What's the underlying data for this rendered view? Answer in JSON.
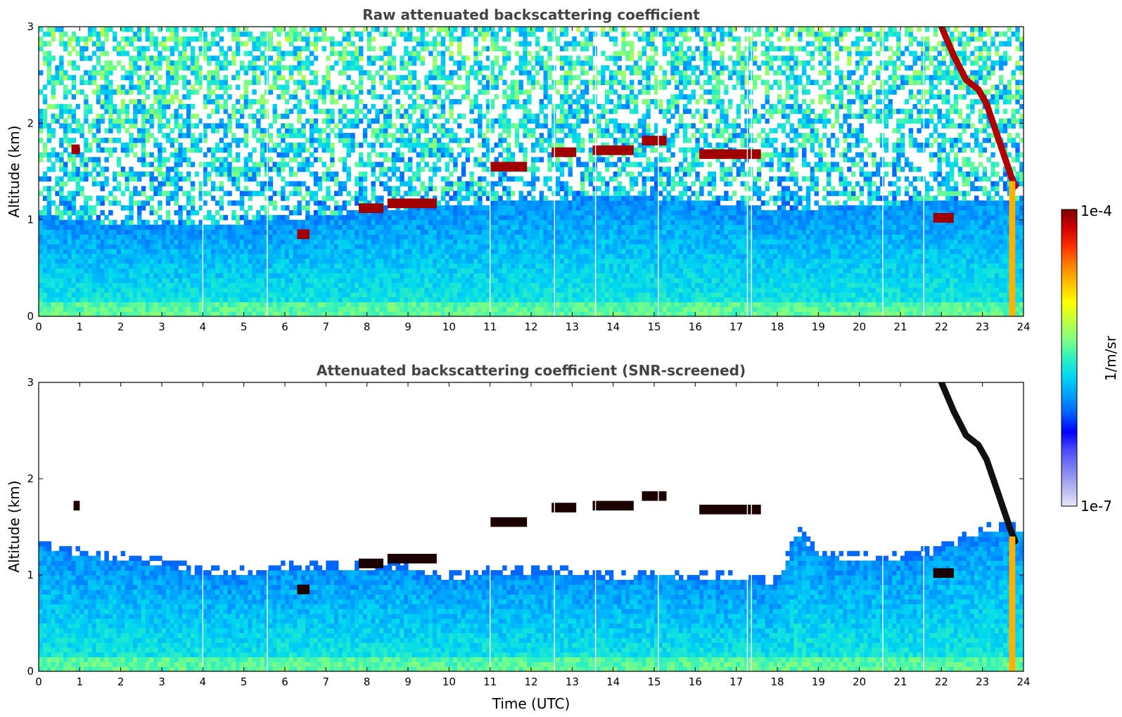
{
  "figure": {
    "xlabel": "Time (UTC)"
  },
  "chart_data": [
    {
      "type": "heatmap",
      "title": "Raw attenuated backscattering coefficient",
      "xlabel": "",
      "ylabel": "Altitude (km)",
      "xlim": [
        0,
        24
      ],
      "ylim": [
        0,
        3
      ],
      "xticks": [
        "0",
        "1",
        "2",
        "3",
        "4",
        "5",
        "6",
        "7",
        "8",
        "9",
        "10",
        "11",
        "12",
        "13",
        "14",
        "15",
        "16",
        "17",
        "18",
        "19",
        "20",
        "21",
        "22",
        "23",
        "24"
      ],
      "yticks": [
        "0",
        "1",
        "2",
        "3"
      ],
      "screened": false,
      "aerosol_layer_top_km": [
        [
          0,
          1.05
        ],
        [
          2,
          0.95
        ],
        [
          4,
          0.95
        ],
        [
          6,
          1.0
        ],
        [
          7,
          1.05
        ],
        [
          8,
          1.1
        ],
        [
          10,
          1.15
        ],
        [
          12,
          1.2
        ],
        [
          14,
          1.25
        ],
        [
          16,
          1.2
        ],
        [
          18,
          1.1
        ],
        [
          20,
          1.15
        ],
        [
          22,
          1.2
        ],
        [
          24,
          1.2
        ]
      ],
      "cloud_layers": [
        {
          "t_start": 0.8,
          "t_end": 1.0,
          "z_km": 1.73
        },
        {
          "t_start": 6.3,
          "t_end": 6.6,
          "z_km": 0.85
        },
        {
          "t_start": 7.8,
          "t_end": 8.4,
          "z_km": 1.12
        },
        {
          "t_start": 8.5,
          "t_end": 9.7,
          "z_km": 1.17
        },
        {
          "t_start": 11.0,
          "t_end": 11.9,
          "z_km": 1.55
        },
        {
          "t_start": 12.5,
          "t_end": 13.1,
          "z_km": 1.7
        },
        {
          "t_start": 13.5,
          "t_end": 14.5,
          "z_km": 1.72
        },
        {
          "t_start": 14.7,
          "t_end": 15.3,
          "z_km": 1.82
        },
        {
          "t_start": 16.1,
          "t_end": 17.6,
          "z_km": 1.68
        },
        {
          "t_start": 21.8,
          "t_end": 22.3,
          "z_km": 1.02
        }
      ],
      "descending_cloud": [
        [
          22.0,
          3.0
        ],
        [
          22.3,
          2.7
        ],
        [
          22.6,
          2.45
        ],
        [
          22.9,
          2.35
        ],
        [
          23.1,
          2.2
        ],
        [
          23.3,
          1.95
        ],
        [
          23.5,
          1.7
        ],
        [
          23.7,
          1.45
        ],
        [
          23.8,
          1.35
        ]
      ],
      "missing_profiles_hours": [
        4.0,
        5.57,
        11.0,
        12.57,
        13.57,
        15.1,
        17.27,
        17.37,
        20.57,
        21.57
      ]
    },
    {
      "type": "heatmap",
      "title": "Attenuated backscattering coefficient (SNR-screened)",
      "xlabel": "Time (UTC)",
      "ylabel": "Altitude (km)",
      "xlim": [
        0,
        24
      ],
      "ylim": [
        0,
        3
      ],
      "xticks": [
        "0",
        "1",
        "2",
        "3",
        "4",
        "5",
        "6",
        "7",
        "8",
        "9",
        "10",
        "11",
        "12",
        "13",
        "14",
        "15",
        "16",
        "17",
        "18",
        "19",
        "20",
        "21",
        "22",
        "23",
        "24"
      ],
      "yticks": [
        "0",
        "1",
        "2",
        "3"
      ],
      "screened": true,
      "aerosol_layer_top_km": [
        [
          0,
          1.3
        ],
        [
          1,
          1.2
        ],
        [
          2,
          1.15
        ],
        [
          3,
          1.1
        ],
        [
          4,
          1.0
        ],
        [
          5,
          1.0
        ],
        [
          6,
          1.05
        ],
        [
          7,
          1.05
        ],
        [
          8,
          1.05
        ],
        [
          9,
          1.05
        ],
        [
          10,
          0.95
        ],
        [
          11,
          1.0
        ],
        [
          12,
          1.0
        ],
        [
          13,
          1.0
        ],
        [
          14,
          0.95
        ],
        [
          15,
          1.0
        ],
        [
          16,
          0.95
        ],
        [
          17,
          0.95
        ],
        [
          18,
          0.9
        ],
        [
          18.5,
          1.45
        ],
        [
          19,
          1.2
        ],
        [
          20,
          1.15
        ],
        [
          21,
          1.15
        ],
        [
          22,
          1.25
        ],
        [
          23,
          1.45
        ],
        [
          24,
          1.45
        ]
      ],
      "cloud_layers": [
        {
          "t_start": 0.85,
          "t_end": 1.0,
          "z_km": 1.72
        },
        {
          "t_start": 6.3,
          "t_end": 6.6,
          "z_km": 0.85
        },
        {
          "t_start": 7.8,
          "t_end": 8.4,
          "z_km": 1.12
        },
        {
          "t_start": 8.5,
          "t_end": 9.7,
          "z_km": 1.17
        },
        {
          "t_start": 11.0,
          "t_end": 11.9,
          "z_km": 1.55
        },
        {
          "t_start": 12.5,
          "t_end": 13.1,
          "z_km": 1.7
        },
        {
          "t_start": 13.5,
          "t_end": 14.5,
          "z_km": 1.72
        },
        {
          "t_start": 14.7,
          "t_end": 15.3,
          "z_km": 1.82
        },
        {
          "t_start": 16.1,
          "t_end": 17.6,
          "z_km": 1.68
        },
        {
          "t_start": 21.8,
          "t_end": 22.3,
          "z_km": 1.02
        }
      ],
      "descending_cloud": [
        [
          22.0,
          3.0
        ],
        [
          22.3,
          2.7
        ],
        [
          22.6,
          2.45
        ],
        [
          22.9,
          2.35
        ],
        [
          23.1,
          2.2
        ],
        [
          23.3,
          1.95
        ],
        [
          23.5,
          1.7
        ],
        [
          23.7,
          1.45
        ],
        [
          23.8,
          1.35
        ]
      ],
      "missing_profiles_hours": [
        4.0,
        5.57,
        11.0,
        12.57,
        13.57,
        15.1,
        17.27,
        17.37,
        20.57,
        21.57
      ]
    }
  ],
  "colorbar": {
    "label": "1/m/sr",
    "max_label": "1e-4",
    "min_label": "1e-7",
    "colormap": "jet",
    "colors": [
      "#e6e6f8",
      "#b3b3f0",
      "#8080f0",
      "#4d4dff",
      "#0000ff",
      "#0060ff",
      "#00a0ff",
      "#00d8f0",
      "#30f0c0",
      "#80ff80",
      "#c0ff40",
      "#ffff00",
      "#ffc000",
      "#ff8000",
      "#ff3000",
      "#d00000",
      "#800000"
    ]
  }
}
